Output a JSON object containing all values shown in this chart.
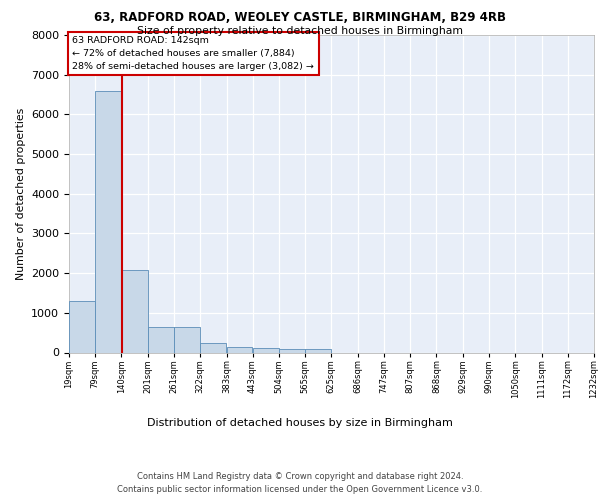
{
  "title_line1": "63, RADFORD ROAD, WEOLEY CASTLE, BIRMINGHAM, B29 4RB",
  "title_line2": "Size of property relative to detached houses in Birmingham",
  "xlabel": "Distribution of detached houses by size in Birmingham",
  "ylabel": "Number of detached properties",
  "footer_line1": "Contains HM Land Registry data © Crown copyright and database right 2024.",
  "footer_line2": "Contains public sector information licensed under the Open Government Licence v3.0.",
  "annotation_line1": "63 RADFORD ROAD: 142sqm",
  "annotation_line2": "← 72% of detached houses are smaller (7,884)",
  "annotation_line3": "28% of semi-detached houses are larger (3,082) →",
  "property_size": 142,
  "bin_edges": [
    19,
    79,
    140,
    201,
    261,
    322,
    383,
    443,
    504,
    565,
    625,
    686,
    747,
    807,
    868,
    929,
    990,
    1050,
    1111,
    1172,
    1232
  ],
  "bar_heights": [
    1310,
    6580,
    2080,
    650,
    650,
    250,
    130,
    110,
    80,
    80,
    0,
    0,
    0,
    0,
    0,
    0,
    0,
    0,
    0,
    0
  ],
  "bar_color": "#c8d8e8",
  "bar_edge_color": "#5b8db8",
  "property_line_color": "#cc0000",
  "tick_labels": [
    "19sqm",
    "79sqm",
    "140sqm",
    "201sqm",
    "261sqm",
    "322sqm",
    "383sqm",
    "443sqm",
    "504sqm",
    "565sqm",
    "625sqm",
    "686sqm",
    "747sqm",
    "807sqm",
    "868sqm",
    "929sqm",
    "990sqm",
    "1050sqm",
    "1111sqm",
    "1172sqm",
    "1232sqm"
  ],
  "ylim_max": 8000,
  "yticks": [
    0,
    1000,
    2000,
    3000,
    4000,
    5000,
    6000,
    7000,
    8000
  ],
  "bg_color": "#e8eef8",
  "grid_color": "#ffffff",
  "ann_box_fc": "#ffffff",
  "ann_box_ec": "#cc0000"
}
